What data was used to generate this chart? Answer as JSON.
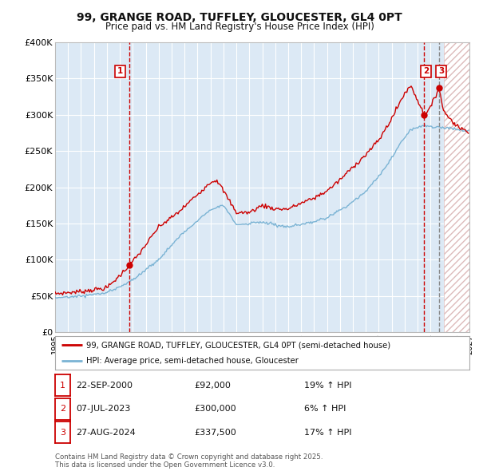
{
  "title": "99, GRANGE ROAD, TUFFLEY, GLOUCESTER, GL4 0PT",
  "subtitle": "Price paid vs. HM Land Registry's House Price Index (HPI)",
  "background_color": "#ffffff",
  "plot_bg_color": "#dce9f5",
  "grid_color": "#ffffff",
  "hpi_line_color": "#7ab3d4",
  "price_line_color": "#cc0000",
  "ylim": [
    0,
    400000
  ],
  "yticks": [
    0,
    50000,
    100000,
    150000,
    200000,
    250000,
    300000,
    350000,
    400000
  ],
  "year_start": 1995,
  "year_end": 2027,
  "transactions": [
    {
      "year": 2000.72,
      "price": 92000,
      "label": "1"
    },
    {
      "year": 2023.5,
      "price": 300000,
      "label": "2"
    },
    {
      "year": 2024.66,
      "price": 337500,
      "label": "3"
    }
  ],
  "legend_entries": [
    "99, GRANGE ROAD, TUFFLEY, GLOUCESTER, GL4 0PT (semi-detached house)",
    "HPI: Average price, semi-detached house, Gloucester"
  ],
  "table_rows": [
    {
      "num": "1",
      "date": "22-SEP-2000",
      "price": "£92,000",
      "pct": "19% ↑ HPI"
    },
    {
      "num": "2",
      "date": "07-JUL-2023",
      "price": "£300,000",
      "pct": "6% ↑ HPI"
    },
    {
      "num": "3",
      "date": "27-AUG-2024",
      "price": "£337,500",
      "pct": "17% ↑ HPI"
    }
  ],
  "footnote": "Contains HM Land Registry data © Crown copyright and database right 2025.\nThis data is licensed under the Open Government Licence v3.0.",
  "hatch_color": "#cc0000",
  "vline_color": "#cc0000",
  "vline2_color": "#888888"
}
